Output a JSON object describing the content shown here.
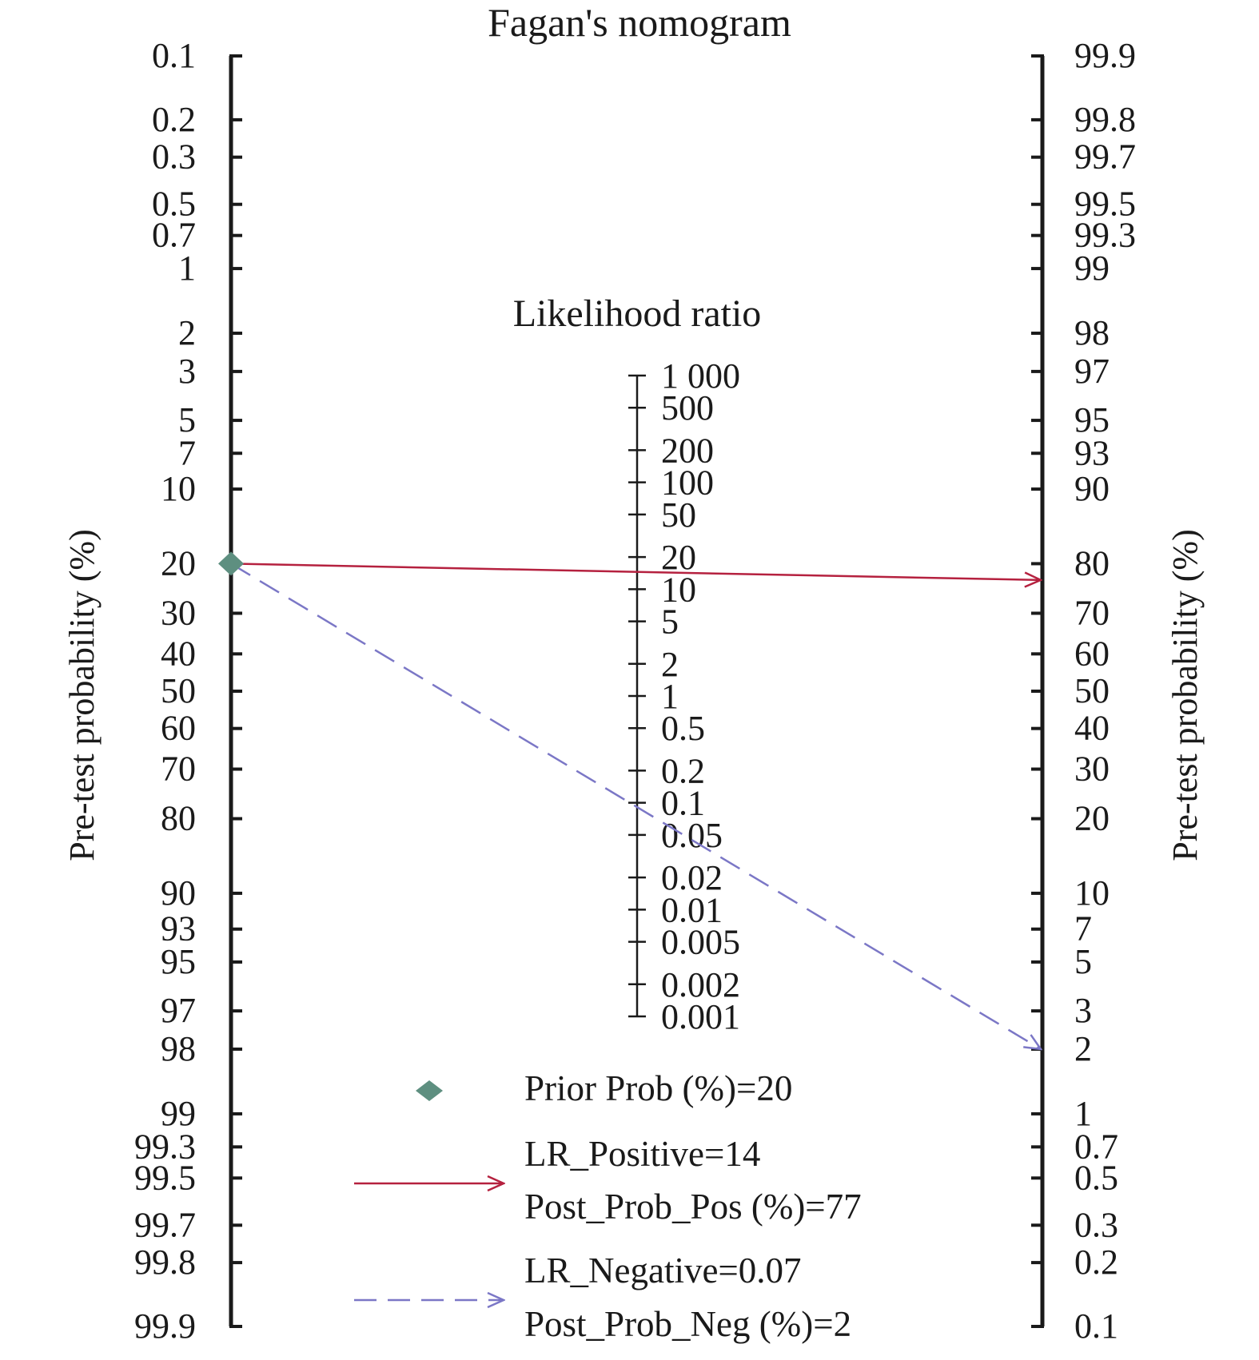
{
  "chart_data": {
    "type": "nomogram",
    "title": "Fagan's nomogram",
    "left_axis": {
      "label": "Pre-test probability (%)",
      "ticks": [
        "0.1",
        "0.2",
        "0.3",
        "0.5",
        "0.7",
        "1",
        "2",
        "3",
        "5",
        "7",
        "10",
        "20",
        "30",
        "40",
        "50",
        "60",
        "70",
        "80",
        "90",
        "93",
        "95",
        "97",
        "98",
        "99",
        "99.3",
        "99.5",
        "99.7",
        "99.8",
        "99.9"
      ]
    },
    "right_axis": {
      "label": "Pre-test probability (%)",
      "ticks": [
        "99.9",
        "99.8",
        "99.7",
        "99.5",
        "99.3",
        "99",
        "98",
        "97",
        "95",
        "93",
        "90",
        "80",
        "70",
        "60",
        "50",
        "40",
        "30",
        "20",
        "10",
        "7",
        "5",
        "3",
        "2",
        "1",
        "0.7",
        "0.5",
        "0.3",
        "0.2",
        "0.1"
      ]
    },
    "middle_axis": {
      "label": "Likelihood ratio",
      "ticks": [
        "1 000",
        "500",
        "200",
        "100",
        "50",
        "20",
        "10",
        "5",
        "2",
        "1",
        "0.5",
        "0.2",
        "0.1",
        "0.05",
        "0.02",
        "0.01",
        "0.005",
        "0.002",
        "0.001"
      ]
    },
    "prior_prob": 20,
    "lr_positive": 14,
    "post_prob_pos": 77,
    "lr_negative": 0.07,
    "post_prob_neg": 2,
    "colors": {
      "axis": "#1a1a1a",
      "prior_marker": "#5e8f80",
      "positive_line": "#b5213f",
      "negative_line": "#7b77c6"
    },
    "legend": {
      "prior": "Prior Prob (%)=20",
      "lr_pos": "LR_Positive=14",
      "post_pos": "Post_Prob_Pos (%)=77",
      "lr_neg": "LR_Negative=0.07",
      "post_neg": "Post_Prob_Neg (%)=2"
    }
  }
}
